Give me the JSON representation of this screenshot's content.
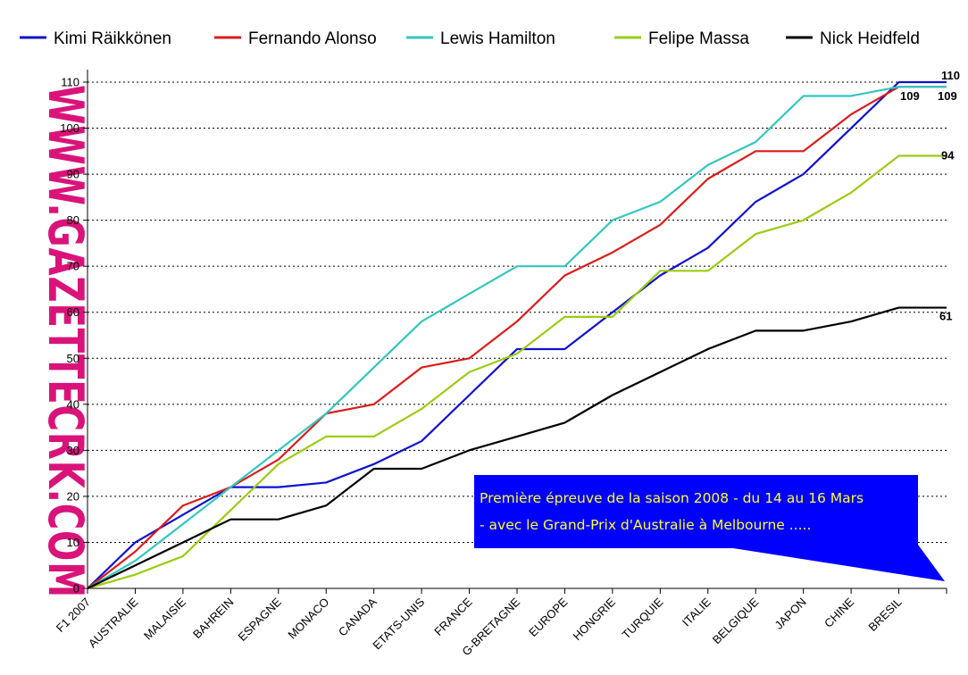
{
  "watermark": "WWW.GAZETTECRK.COM",
  "annotation": {
    "line1": "Première épreuve de la saison 2008 - du 14 au 16 Mars",
    "line2": "- avec le Grand-Prix d'Australie à Melbourne .....",
    "background": "#0000ff",
    "text_color": "#ffff33"
  },
  "chart_data": {
    "type": "line",
    "categories": [
      "F1  2007",
      "AUSTRALIE",
      "MALAISIE",
      "BAHREIN",
      "ESPAGNE",
      "MONACO",
      "CANADA",
      "ETATS-UNIS",
      "FRANCE",
      "G-BRETAGNE",
      "EUROPE",
      "HONGRIE",
      "TURQUIE",
      "ITALIE",
      "BELGIQUE",
      "JAPON",
      "CHINE",
      "BRESIL",
      ""
    ],
    "ylim": [
      0,
      110
    ],
    "yticks": [
      0,
      10,
      20,
      30,
      40,
      50,
      60,
      70,
      80,
      90,
      100,
      110
    ],
    "grid": "horizontal-dotted",
    "legend_position": "top",
    "series": [
      {
        "name": "Kimi Räikkönen",
        "color": "#1010d0",
        "values": [
          0,
          10,
          16,
          22,
          22,
          23,
          27,
          32,
          42,
          52,
          52,
          60,
          68,
          74,
          84,
          90,
          100,
          110,
          110
        ],
        "end_label": "110"
      },
      {
        "name": "Fernando Alonso",
        "color": "#dd1c1c",
        "values": [
          0,
          8,
          18,
          22,
          28,
          38,
          40,
          48,
          50,
          58,
          68,
          73,
          79,
          89,
          95,
          95,
          103,
          109,
          109
        ],
        "end_label": "109"
      },
      {
        "name": "Lewis Hamilton",
        "color": "#33c6c0",
        "values": [
          0,
          6,
          14,
          22,
          30,
          38,
          48,
          58,
          64,
          70,
          70,
          80,
          84,
          92,
          97,
          107,
          107,
          109,
          109
        ],
        "end_label": "109"
      },
      {
        "name": "Felipe Massa",
        "color": "#9acd10",
        "values": [
          0,
          3,
          7,
          17,
          27,
          33,
          33,
          39,
          47,
          51,
          59,
          59,
          69,
          69,
          77,
          80,
          86,
          94,
          94
        ],
        "end_label": "94"
      },
      {
        "name": "Nick Heidfeld",
        "color": "#000000",
        "values": [
          0,
          5,
          10,
          15,
          15,
          18,
          26,
          26,
          30,
          33,
          36,
          42,
          47,
          52,
          56,
          56,
          58,
          61,
          61
        ],
        "end_label": "61"
      }
    ]
  }
}
